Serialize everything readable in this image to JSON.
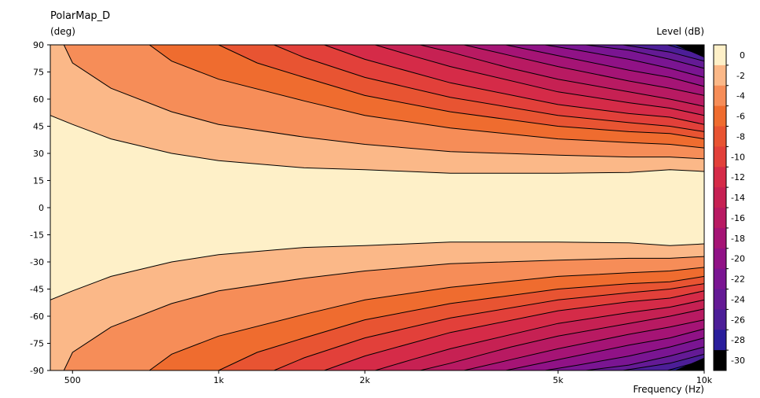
{
  "chart_data": {
    "type": "heatmap",
    "title": "PolarMap_D",
    "ylabel": "(deg)",
    "xlabel": "Frequency  (Hz)",
    "colorbar_label": "Level  (dB)",
    "x_scale": "log",
    "xlim": [
      450,
      10000
    ],
    "ylim": [
      -90,
      90
    ],
    "x_ticks": [
      {
        "value": 500,
        "label": "500"
      },
      {
        "value": 1000,
        "label": "1k"
      },
      {
        "value": 2000,
        "label": "2k"
      },
      {
        "value": 5000,
        "label": "5k"
      },
      {
        "value": 10000,
        "label": "10k"
      }
    ],
    "y_ticks": [
      90,
      75,
      60,
      45,
      30,
      15,
      0,
      -15,
      -30,
      -45,
      -60,
      -75,
      -90
    ],
    "levels": [
      {
        "label": "0",
        "color": "#fef0c8"
      },
      {
        "label": "-2",
        "color": "#fbb888"
      },
      {
        "label": "-4",
        "color": "#f68d58"
      },
      {
        "label": "-6",
        "color": "#ef6c2f"
      },
      {
        "label": "-8",
        "color": "#e85432"
      },
      {
        "label": "-10",
        "color": "#e2403a"
      },
      {
        "label": "-12",
        "color": "#d52b48"
      },
      {
        "label": "-14",
        "color": "#c62153"
      },
      {
        "label": "-16",
        "color": "#b81a62"
      },
      {
        "label": "-18",
        "color": "#a51475"
      },
      {
        "label": "-20",
        "color": "#901286"
      },
      {
        "label": "-22",
        "color": "#7a1592"
      },
      {
        "label": "-24",
        "color": "#641a95"
      },
      {
        "label": "-26",
        "color": "#4c1e98"
      },
      {
        "label": "-28",
        "color": "#2a1e9c"
      },
      {
        "label": "-30",
        "color": "#000000"
      }
    ],
    "contours": [
      {
        "level": -2,
        "points": [
          [
            450,
            51
          ],
          [
            500,
            46
          ],
          [
            600,
            38
          ],
          [
            800,
            30
          ],
          [
            1000,
            26
          ],
          [
            1500,
            22
          ],
          [
            2000,
            21
          ],
          [
            3000,
            19
          ],
          [
            5000,
            19
          ],
          [
            7000,
            19.5
          ],
          [
            8500,
            21
          ],
          [
            10000,
            20
          ]
        ]
      },
      {
        "level": -4,
        "points": [
          [
            480,
            90
          ],
          [
            500,
            80
          ],
          [
            600,
            66
          ],
          [
            800,
            53
          ],
          [
            1000,
            46
          ],
          [
            1500,
            39
          ],
          [
            2000,
            35
          ],
          [
            3000,
            31
          ],
          [
            5000,
            29
          ],
          [
            7000,
            28
          ],
          [
            8500,
            28
          ],
          [
            10000,
            27
          ]
        ]
      },
      {
        "level": -6,
        "points": [
          [
            720,
            90
          ],
          [
            800,
            81
          ],
          [
            1000,
            71
          ],
          [
            1500,
            59
          ],
          [
            2000,
            51
          ],
          [
            3000,
            44
          ],
          [
            5000,
            38
          ],
          [
            7000,
            36
          ],
          [
            8500,
            35
          ],
          [
            10000,
            33
          ]
        ]
      },
      {
        "level": -8,
        "points": [
          [
            1000,
            90
          ],
          [
            1200,
            80
          ],
          [
            1500,
            72
          ],
          [
            2000,
            62
          ],
          [
            3000,
            53
          ],
          [
            5000,
            45
          ],
          [
            7000,
            42
          ],
          [
            8500,
            41
          ],
          [
            10000,
            38
          ]
        ]
      },
      {
        "level": -10,
        "points": [
          [
            1300,
            90
          ],
          [
            1500,
            83
          ],
          [
            2000,
            72
          ],
          [
            3000,
            61
          ],
          [
            5000,
            51
          ],
          [
            7000,
            47
          ],
          [
            8500,
            45
          ],
          [
            10000,
            42
          ]
        ]
      },
      {
        "level": -12,
        "points": [
          [
            1650,
            90
          ],
          [
            2000,
            82
          ],
          [
            3000,
            69
          ],
          [
            5000,
            57
          ],
          [
            7000,
            52
          ],
          [
            8500,
            50
          ],
          [
            10000,
            46
          ]
        ]
      },
      {
        "level": -14,
        "points": [
          [
            2100,
            90
          ],
          [
            2500,
            84
          ],
          [
            3000,
            78
          ],
          [
            5000,
            64
          ],
          [
            7000,
            58
          ],
          [
            8500,
            55
          ],
          [
            10000,
            51
          ]
        ]
      },
      {
        "level": -16,
        "points": [
          [
            2600,
            90
          ],
          [
            3000,
            86
          ],
          [
            4000,
            77
          ],
          [
            5000,
            71
          ],
          [
            7000,
            64
          ],
          [
            8500,
            60
          ],
          [
            10000,
            56
          ]
        ]
      },
      {
        "level": -18,
        "points": [
          [
            3200,
            90
          ],
          [
            4000,
            84
          ],
          [
            5000,
            78
          ],
          [
            7000,
            70
          ],
          [
            8500,
            66
          ],
          [
            10000,
            62
          ]
        ]
      },
      {
        "level": -20,
        "points": [
          [
            3900,
            90
          ],
          [
            5000,
            84
          ],
          [
            7000,
            76
          ],
          [
            8500,
            72
          ],
          [
            10000,
            67
          ]
        ]
      },
      {
        "level": -22,
        "points": [
          [
            4700,
            90
          ],
          [
            5500,
            87
          ],
          [
            7000,
            82
          ],
          [
            8500,
            77
          ],
          [
            10000,
            72
          ]
        ]
      },
      {
        "level": -24,
        "points": [
          [
            5700,
            90
          ],
          [
            7000,
            87
          ],
          [
            8500,
            82
          ],
          [
            10000,
            77
          ]
        ]
      },
      {
        "level": -26,
        "points": [
          [
            6800,
            90
          ],
          [
            8500,
            86
          ],
          [
            10000,
            81
          ]
        ]
      },
      {
        "level": -28,
        "points": [
          [
            8400,
            90
          ],
          [
            9500,
            86
          ],
          [
            10000,
            84
          ]
        ]
      }
    ]
  }
}
